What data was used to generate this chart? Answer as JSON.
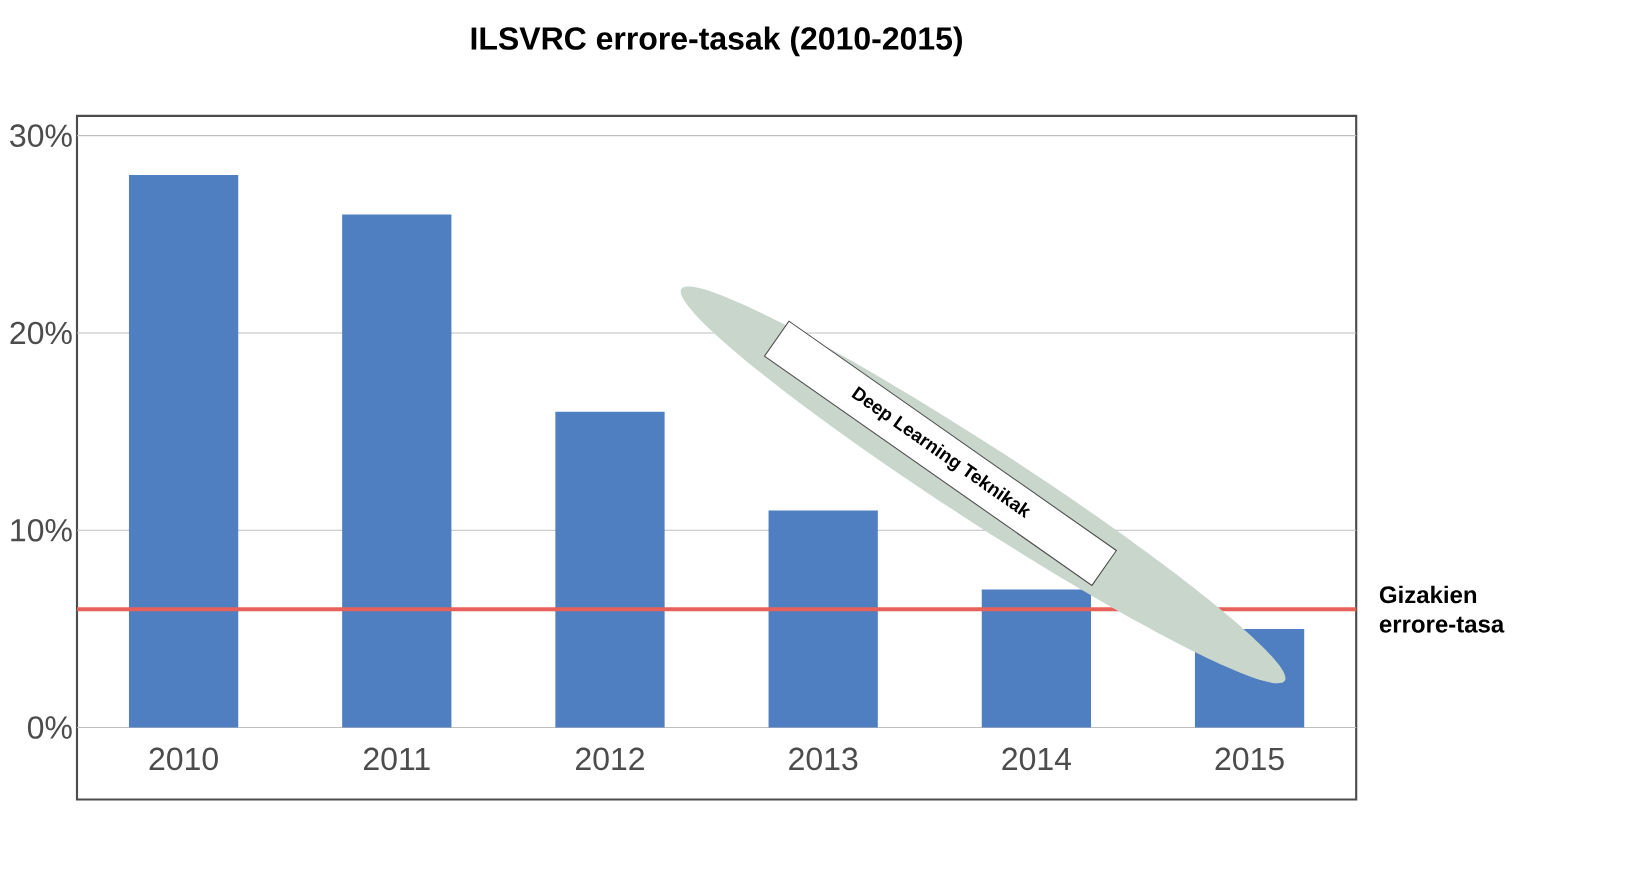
{
  "chart_data": {
    "type": "bar",
    "title": "ILSVRC errore-tasak (2010-2015)",
    "categories": [
      "2010",
      "2011",
      "2012",
      "2013",
      "2014",
      "2015"
    ],
    "values": [
      28,
      26,
      16,
      11,
      7,
      5
    ],
    "color": "#4f7fc0",
    "ylim": [
      0,
      31
    ],
    "yticks": [
      {
        "value": 0,
        "label": "0%"
      },
      {
        "value": 10,
        "label": "10%"
      },
      {
        "value": 20,
        "label": "20%"
      },
      {
        "value": 30,
        "label": "30%"
      }
    ],
    "grid": "y",
    "ref_lines": [
      {
        "axis": "y",
        "value": 6,
        "label": "Gizakien errore-tasa",
        "color": "#e8605a"
      }
    ],
    "annotations": [
      "Deep Learning Teknikak"
    ]
  }
}
